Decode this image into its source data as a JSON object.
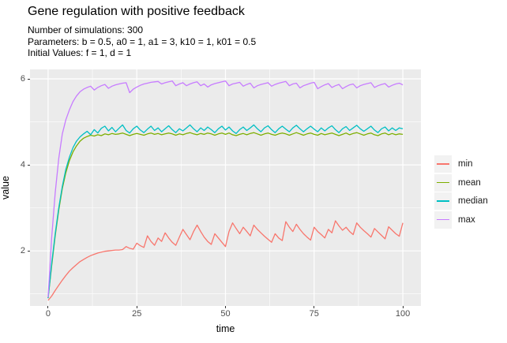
{
  "title": "Gene regulation with positive feedback",
  "subtitle": {
    "line1": "Number of simulations: 300",
    "line2": "Parameters: b = 0.5, a0 = 1, a1 = 3, k10 = 1, k01 = 0.5",
    "line3": "Initial Values: f = 1, d = 1"
  },
  "colors": {
    "panel_bg": "#EBEBEB",
    "grid": "#FFFFFF",
    "axis_text": "#4D4D4D",
    "tick_mark": "#333333",
    "legend_key_bg": "#F2F2F2",
    "min": "#F8766D",
    "mean": "#7CAE00",
    "median": "#00BFC4",
    "max": "#C77CFF"
  },
  "chart_data": {
    "type": "line",
    "title": "Gene regulation with positive feedback",
    "xlabel": "time",
    "ylabel": "value",
    "legend_position": "right",
    "grid": true,
    "x_ticks": [
      0,
      25,
      50,
      75,
      100
    ],
    "x_minor": [
      12.5,
      37.5,
      62.5,
      87.5
    ],
    "y_ticks": [
      2,
      4,
      6
    ],
    "y_minor": [
      1,
      3,
      5
    ],
    "x_range": [
      -5.1,
      105.1
    ],
    "y_range": [
      0.72,
      6.22
    ],
    "x_start": 0,
    "x_step": 1,
    "series": [
      {
        "name": "min",
        "color": "#F8766D",
        "values": [
          0.85,
          0.95,
          1.08,
          1.2,
          1.32,
          1.43,
          1.53,
          1.61,
          1.68,
          1.75,
          1.8,
          1.85,
          1.89,
          1.92,
          1.95,
          1.97,
          1.99,
          2.0,
          2.01,
          2.02,
          2.02,
          2.03,
          2.1,
          2.06,
          2.04,
          2.18,
          2.12,
          2.08,
          2.35,
          2.22,
          2.13,
          2.3,
          2.22,
          2.42,
          2.3,
          2.2,
          2.13,
          2.32,
          2.5,
          2.38,
          2.26,
          2.45,
          2.6,
          2.45,
          2.32,
          2.22,
          2.15,
          2.4,
          2.3,
          2.2,
          2.1,
          2.45,
          2.65,
          2.52,
          2.4,
          2.55,
          2.45,
          2.35,
          2.6,
          2.5,
          2.42,
          2.34,
          2.27,
          2.2,
          2.4,
          2.3,
          2.24,
          2.68,
          2.55,
          2.45,
          2.62,
          2.5,
          2.4,
          2.32,
          2.25,
          2.55,
          2.45,
          2.38,
          2.3,
          2.5,
          2.42,
          2.7,
          2.58,
          2.48,
          2.55,
          2.45,
          2.38,
          2.65,
          2.55,
          2.47,
          2.4,
          2.32,
          2.52,
          2.44,
          2.36,
          2.28,
          2.56,
          2.48,
          2.4,
          2.34,
          2.65
        ]
      },
      {
        "name": "mean",
        "color": "#7CAE00",
        "values": [
          0.9,
          1.65,
          2.35,
          2.95,
          3.45,
          3.82,
          4.1,
          4.3,
          4.44,
          4.55,
          4.62,
          4.66,
          4.69,
          4.67,
          4.7,
          4.68,
          4.72,
          4.7,
          4.73,
          4.71,
          4.72,
          4.74,
          4.71,
          4.68,
          4.71,
          4.73,
          4.71,
          4.69,
          4.72,
          4.74,
          4.71,
          4.73,
          4.7,
          4.72,
          4.74,
          4.72,
          4.69,
          4.72,
          4.7,
          4.73,
          4.75,
          4.72,
          4.7,
          4.73,
          4.71,
          4.74,
          4.72,
          4.69,
          4.72,
          4.74,
          4.71,
          4.74,
          4.7,
          4.68,
          4.71,
          4.73,
          4.7,
          4.73,
          4.75,
          4.72,
          4.69,
          4.72,
          4.74,
          4.71,
          4.69,
          4.72,
          4.74,
          4.72,
          4.69,
          4.72,
          4.75,
          4.72,
          4.69,
          4.72,
          4.74,
          4.71,
          4.69,
          4.73,
          4.7,
          4.72,
          4.74,
          4.71,
          4.68,
          4.71,
          4.74,
          4.7,
          4.73,
          4.75,
          4.72,
          4.69,
          4.72,
          4.74,
          4.7,
          4.68,
          4.72,
          4.74,
          4.7,
          4.73,
          4.7,
          4.72,
          4.71
        ]
      },
      {
        "name": "median",
        "color": "#00BFC4",
        "values": [
          0.9,
          1.7,
          2.4,
          3.0,
          3.5,
          3.9,
          4.18,
          4.4,
          4.55,
          4.65,
          4.72,
          4.78,
          4.7,
          4.82,
          4.74,
          4.85,
          4.9,
          4.79,
          4.87,
          4.77,
          4.85,
          4.93,
          4.8,
          4.74,
          4.84,
          4.9,
          4.81,
          4.75,
          4.83,
          4.9,
          4.8,
          4.86,
          4.77,
          4.84,
          4.91,
          4.82,
          4.75,
          4.84,
          4.79,
          4.86,
          4.93,
          4.84,
          4.77,
          4.86,
          4.8,
          4.88,
          4.82,
          4.75,
          4.84,
          4.9,
          4.81,
          4.88,
          4.79,
          4.73,
          4.82,
          4.88,
          4.8,
          4.86,
          4.93,
          4.84,
          4.77,
          4.86,
          4.91,
          4.82,
          4.75,
          4.84,
          4.9,
          4.83,
          4.77,
          4.86,
          4.92,
          4.84,
          4.77,
          4.84,
          4.9,
          4.83,
          4.77,
          4.86,
          4.79,
          4.86,
          4.91,
          4.82,
          4.75,
          4.84,
          4.89,
          4.8,
          4.86,
          4.92,
          4.84,
          4.78,
          4.84,
          4.9,
          4.81,
          4.75,
          4.84,
          4.88,
          4.79,
          4.86,
          4.8,
          4.86,
          4.84
        ]
      },
      {
        "name": "max",
        "color": "#C77CFF",
        "values": [
          0.92,
          2.3,
          3.35,
          4.15,
          4.72,
          5.05,
          5.28,
          5.47,
          5.6,
          5.7,
          5.76,
          5.8,
          5.83,
          5.74,
          5.8,
          5.84,
          5.87,
          5.78,
          5.83,
          5.86,
          5.88,
          5.9,
          5.91,
          5.68,
          5.76,
          5.81,
          5.85,
          5.88,
          5.9,
          5.92,
          5.93,
          5.94,
          5.88,
          5.91,
          5.93,
          5.95,
          5.84,
          5.88,
          5.91,
          5.84,
          5.88,
          5.91,
          5.93,
          5.84,
          5.88,
          5.81,
          5.86,
          5.89,
          5.91,
          5.93,
          5.95,
          5.84,
          5.88,
          5.9,
          5.92,
          5.83,
          5.87,
          5.9,
          5.79,
          5.84,
          5.87,
          5.89,
          5.91,
          5.83,
          5.87,
          5.9,
          5.92,
          5.94,
          5.84,
          5.88,
          5.9,
          5.79,
          5.84,
          5.87,
          5.9,
          5.92,
          5.77,
          5.82,
          5.86,
          5.89,
          5.8,
          5.84,
          5.87,
          5.77,
          5.82,
          5.86,
          5.88,
          5.79,
          5.84,
          5.87,
          5.89,
          5.91,
          5.8,
          5.84,
          5.87,
          5.89,
          5.81,
          5.85,
          5.88,
          5.9,
          5.86
        ]
      }
    ]
  }
}
